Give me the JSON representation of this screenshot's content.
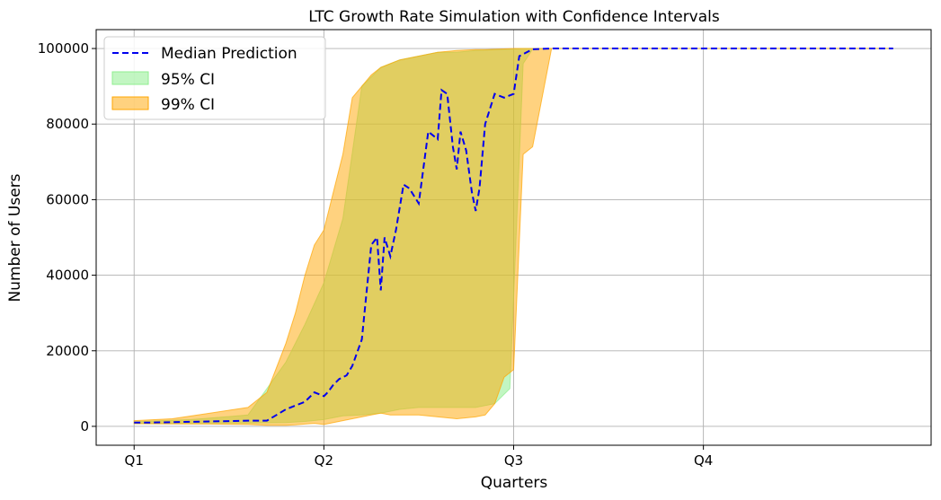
{
  "chart_data": {
    "type": "line",
    "title": "LTC Growth Rate Simulation with Confidence Intervals",
    "xlabel": "Quarters",
    "ylabel": "Number of Users",
    "x_tick_labels": [
      "Q1",
      "Q2",
      "Q3",
      "Q4"
    ],
    "y_ticks": [
      0,
      20000,
      40000,
      60000,
      80000,
      100000
    ],
    "y_tick_labels": [
      "0",
      "20000",
      "40000",
      "60000",
      "80000",
      "100000"
    ],
    "xlim": [
      -0.2,
      4.2
    ],
    "ylim": [
      -5000,
      105000
    ],
    "grid": true,
    "legend_position": "top-left",
    "series": [
      {
        "name": "Median Prediction",
        "kind": "dashed-line",
        "color": "#0000ee",
        "x": [
          0,
          0.1,
          0.2,
          0.3,
          0.4,
          0.5,
          0.6,
          0.7,
          0.75,
          0.8,
          0.85,
          0.9,
          0.95,
          1.0,
          1.02,
          1.05,
          1.08,
          1.12,
          1.15,
          1.2,
          1.25,
          1.28,
          1.3,
          1.32,
          1.35,
          1.38,
          1.42,
          1.45,
          1.5,
          1.55,
          1.6,
          1.62,
          1.65,
          1.68,
          1.7,
          1.72,
          1.75,
          1.78,
          1.8,
          1.82,
          1.85,
          1.9,
          1.95,
          2.0,
          2.03,
          2.1,
          2.2,
          2.5,
          3.0,
          3.5,
          4.0
        ],
        "values": [
          1000,
          1000,
          1100,
          1200,
          1300,
          1400,
          1500,
          1500,
          3000,
          4500,
          5500,
          6500,
          9000,
          8000,
          9000,
          11000,
          12500,
          13500,
          16000,
          23000,
          48000,
          50000,
          36000,
          50000,
          45000,
          52000,
          64000,
          63000,
          59000,
          78000,
          76000,
          89000,
          88000,
          74000,
          68000,
          78000,
          73000,
          62000,
          57000,
          63000,
          80000,
          88000,
          87000,
          88000,
          98000,
          99800,
          100000,
          100000,
          100000,
          100000,
          100000
        ]
      },
      {
        "name": "95% CI",
        "kind": "band",
        "color": "#90ee90",
        "opacity": 0.55,
        "x": [
          0,
          0.3,
          0.6,
          0.8,
          0.9,
          1.0,
          1.1,
          1.2,
          1.3,
          1.4,
          1.5,
          1.6,
          1.7,
          1.8,
          1.9,
          1.98,
          2.05,
          2.1,
          2.2,
          3.0,
          4.0
        ],
        "lower": [
          800,
          850,
          900,
          1000,
          1300,
          1800,
          2800,
          3000,
          3500,
          4500,
          5000,
          5000,
          5000,
          5000,
          6000,
          10000,
          96000,
          99800,
          100000,
          100000,
          100000
        ],
        "upper": [
          1200,
          1800,
          3000,
          17000,
          27000,
          38000,
          55000,
          90000,
          95000,
          97000,
          98000,
          99000,
          99000,
          99500,
          99700,
          99800,
          100000,
          100000,
          100000,
          100000,
          100000
        ]
      },
      {
        "name": "99% CI",
        "kind": "band",
        "color": "#ffa500",
        "opacity": 0.5,
        "x": [
          0,
          0.2,
          0.4,
          0.6,
          0.7,
          0.8,
          0.85,
          0.9,
          0.95,
          1.0,
          1.05,
          1.1,
          1.15,
          1.2,
          1.25,
          1.3,
          1.35,
          1.4,
          1.5,
          1.6,
          1.7,
          1.8,
          1.85,
          1.9,
          1.95,
          2.0,
          2.05,
          2.1,
          2.2,
          3.0,
          4.0
        ],
        "lower": [
          700,
          650,
          600,
          500,
          300,
          300,
          400,
          600,
          800,
          500,
          1000,
          1500,
          2000,
          2500,
          3000,
          3500,
          3000,
          3000,
          3000,
          2500,
          2000,
          2500,
          3000,
          6000,
          13000,
          15000,
          72000,
          74000,
          100000,
          100000,
          100000
        ],
        "upper": [
          1500,
          2000,
          3500,
          5000,
          9000,
          22000,
          30000,
          40000,
          48000,
          52000,
          62000,
          72000,
          87000,
          90000,
          93000,
          95000,
          96000,
          97000,
          98000,
          99000,
          99500,
          99700,
          99700,
          99800,
          99900,
          100000,
          100000,
          100000,
          100000,
          100000,
          100000
        ]
      }
    ]
  }
}
